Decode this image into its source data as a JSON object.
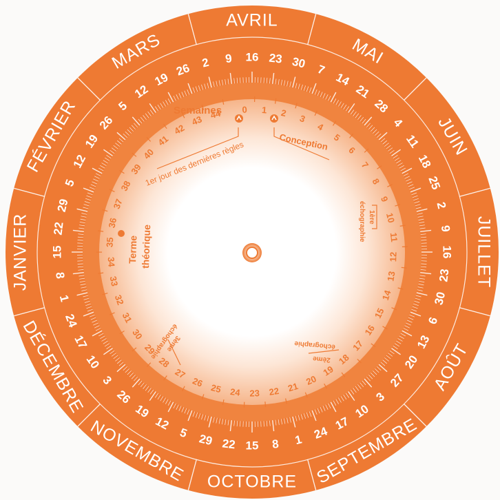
{
  "wheel": {
    "months": [
      "AVRIL",
      "MAI",
      "JUIN",
      "JUILLET",
      "AOÛT",
      "SEPTEMBRE",
      "OCTOBRE",
      "NOVEMBRE",
      "DÉCEMBRE",
      "JANVIER",
      "FÉVRIER",
      "MARS"
    ],
    "days": [
      "2",
      "9",
      "16",
      "23",
      "30",
      "7",
      "14",
      "21",
      "28",
      "4",
      "11",
      "18",
      "25",
      "2",
      "9",
      "16",
      "23",
      "30",
      "6",
      "13",
      "20",
      "27",
      "3",
      "10",
      "17",
      "24",
      "1",
      "8",
      "15",
      "22",
      "29",
      "5",
      "12",
      "19",
      "26",
      "3",
      "10",
      "17",
      "24",
      "1",
      "8",
      "15",
      "22",
      "29",
      "5",
      "12",
      "19",
      "26",
      "5",
      "12",
      "19",
      "26"
    ],
    "weeks": [
      "0",
      "1",
      "2",
      "3",
      "4",
      "5",
      "6",
      "7",
      "8",
      "9",
      "10",
      "11",
      "12",
      "13",
      "14",
      "15",
      "16",
      "17",
      "18",
      "19",
      "20",
      "21",
      "22",
      "23",
      "24",
      "25",
      "26",
      "27",
      "28",
      "29",
      "30",
      "31",
      "32",
      "33",
      "34",
      "35",
      "36",
      "37",
      "38",
      "39",
      "40",
      "41",
      "42",
      "43",
      "44"
    ],
    "labels": {
      "semaines": "Semaines",
      "premier_jour": "1er jour des dernières règles",
      "conception": "Conception",
      "terme_1": "Terme",
      "terme_2": "théorique",
      "echo1_ordinal": "1ère",
      "echo2_ordinal": "2ème",
      "echo3_ordinal": "3ème",
      "echographie": "échographie"
    },
    "colors": {
      "orange": "#ee7a33",
      "light_orange": "#f6b58a",
      "center_white": "#ffffff"
    }
  }
}
